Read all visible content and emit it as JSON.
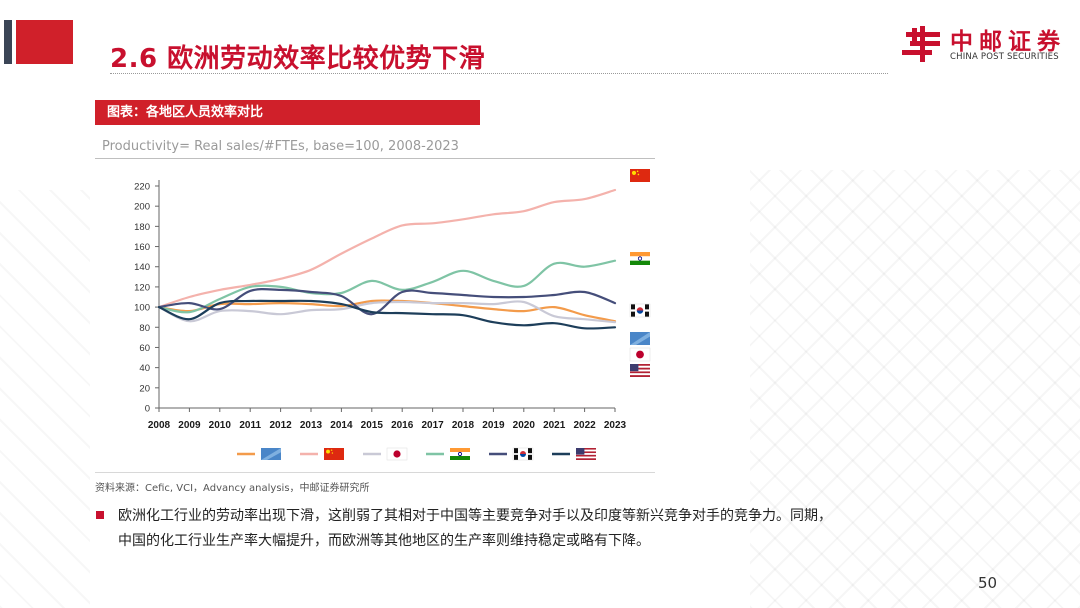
{
  "slide": {
    "title": "2.6 欧洲劳动效率比较优势下滑",
    "page_number": "50",
    "accent_color": "#c8102e"
  },
  "logo": {
    "cn": "中邮证券",
    "en": "CHINA POST SECURITIES"
  },
  "figure": {
    "header": "图表：各地区人员效率对比",
    "formula": "Productivity= Real sales/#FTEs, base=100, 2008-2023",
    "source": "资料来源：Cefic, VCI，Advancy analysis，中邮证券研究所"
  },
  "body": {
    "bullet": "欧洲化工行业的劳动率出现下滑，这削弱了其相对于中国等主要竞争对手以及印度等新兴竞争对手的竞争力。同期，中国的化工行业生产率大幅提升，而欧洲等其他地区的生产率则维持稳定或略有下降。"
  },
  "chart_data": {
    "type": "line",
    "title": "",
    "xlabel": "",
    "ylabel": "",
    "ylim": [
      0,
      220
    ],
    "yticks": [
      "0",
      "20",
      "40",
      "60",
      "80",
      "100",
      "120",
      "140",
      "160",
      "180",
      "200",
      "220"
    ],
    "x": [
      "2008",
      "2009",
      "2010",
      "2011",
      "2012",
      "2013",
      "2014",
      "2015",
      "2016",
      "2017",
      "2018",
      "2019",
      "2020",
      "2021",
      "2022",
      "2023"
    ],
    "series": [
      {
        "name": "EU",
        "flag": "EU",
        "color": "#f39b4b",
        "values": [
          100,
          96,
          103,
          103,
          104,
          103,
          101,
          106,
          106,
          104,
          101,
          98,
          96,
          100,
          92,
          86
        ]
      },
      {
        "name": "China",
        "flag": "CN",
        "color": "#f4b2ac",
        "values": [
          100,
          110,
          117,
          122,
          128,
          137,
          153,
          168,
          181,
          183,
          187,
          192,
          195,
          204,
          207,
          216
        ]
      },
      {
        "name": "Japan",
        "flag": "JP",
        "color": "#c9c9d6",
        "values": [
          100,
          86,
          96,
          96,
          93,
          97,
          98,
          104,
          105,
          104,
          104,
          103,
          105,
          91,
          88,
          85
        ]
      },
      {
        "name": "India",
        "flag": "IN",
        "color": "#7fc4a5",
        "values": [
          100,
          95,
          108,
          120,
          120,
          114,
          114,
          126,
          117,
          125,
          136,
          126,
          121,
          143,
          140,
          146
        ]
      },
      {
        "name": "Korea",
        "flag": "KR",
        "color": "#454e7a",
        "values": [
          100,
          104,
          98,
          116,
          117,
          115,
          111,
          93,
          115,
          114,
          112,
          110,
          110,
          112,
          115,
          104
        ]
      },
      {
        "name": "USA",
        "flag": "US",
        "color": "#1d3e5a",
        "values": [
          100,
          88,
          104,
          106,
          106,
          106,
          103,
          95,
          94,
          93,
          92,
          85,
          82,
          84,
          79,
          80
        ]
      }
    ],
    "legend_position": "bottom",
    "end_flags_order": [
      "CN",
      "IN",
      "KR",
      "EU",
      "JP",
      "US"
    ]
  }
}
